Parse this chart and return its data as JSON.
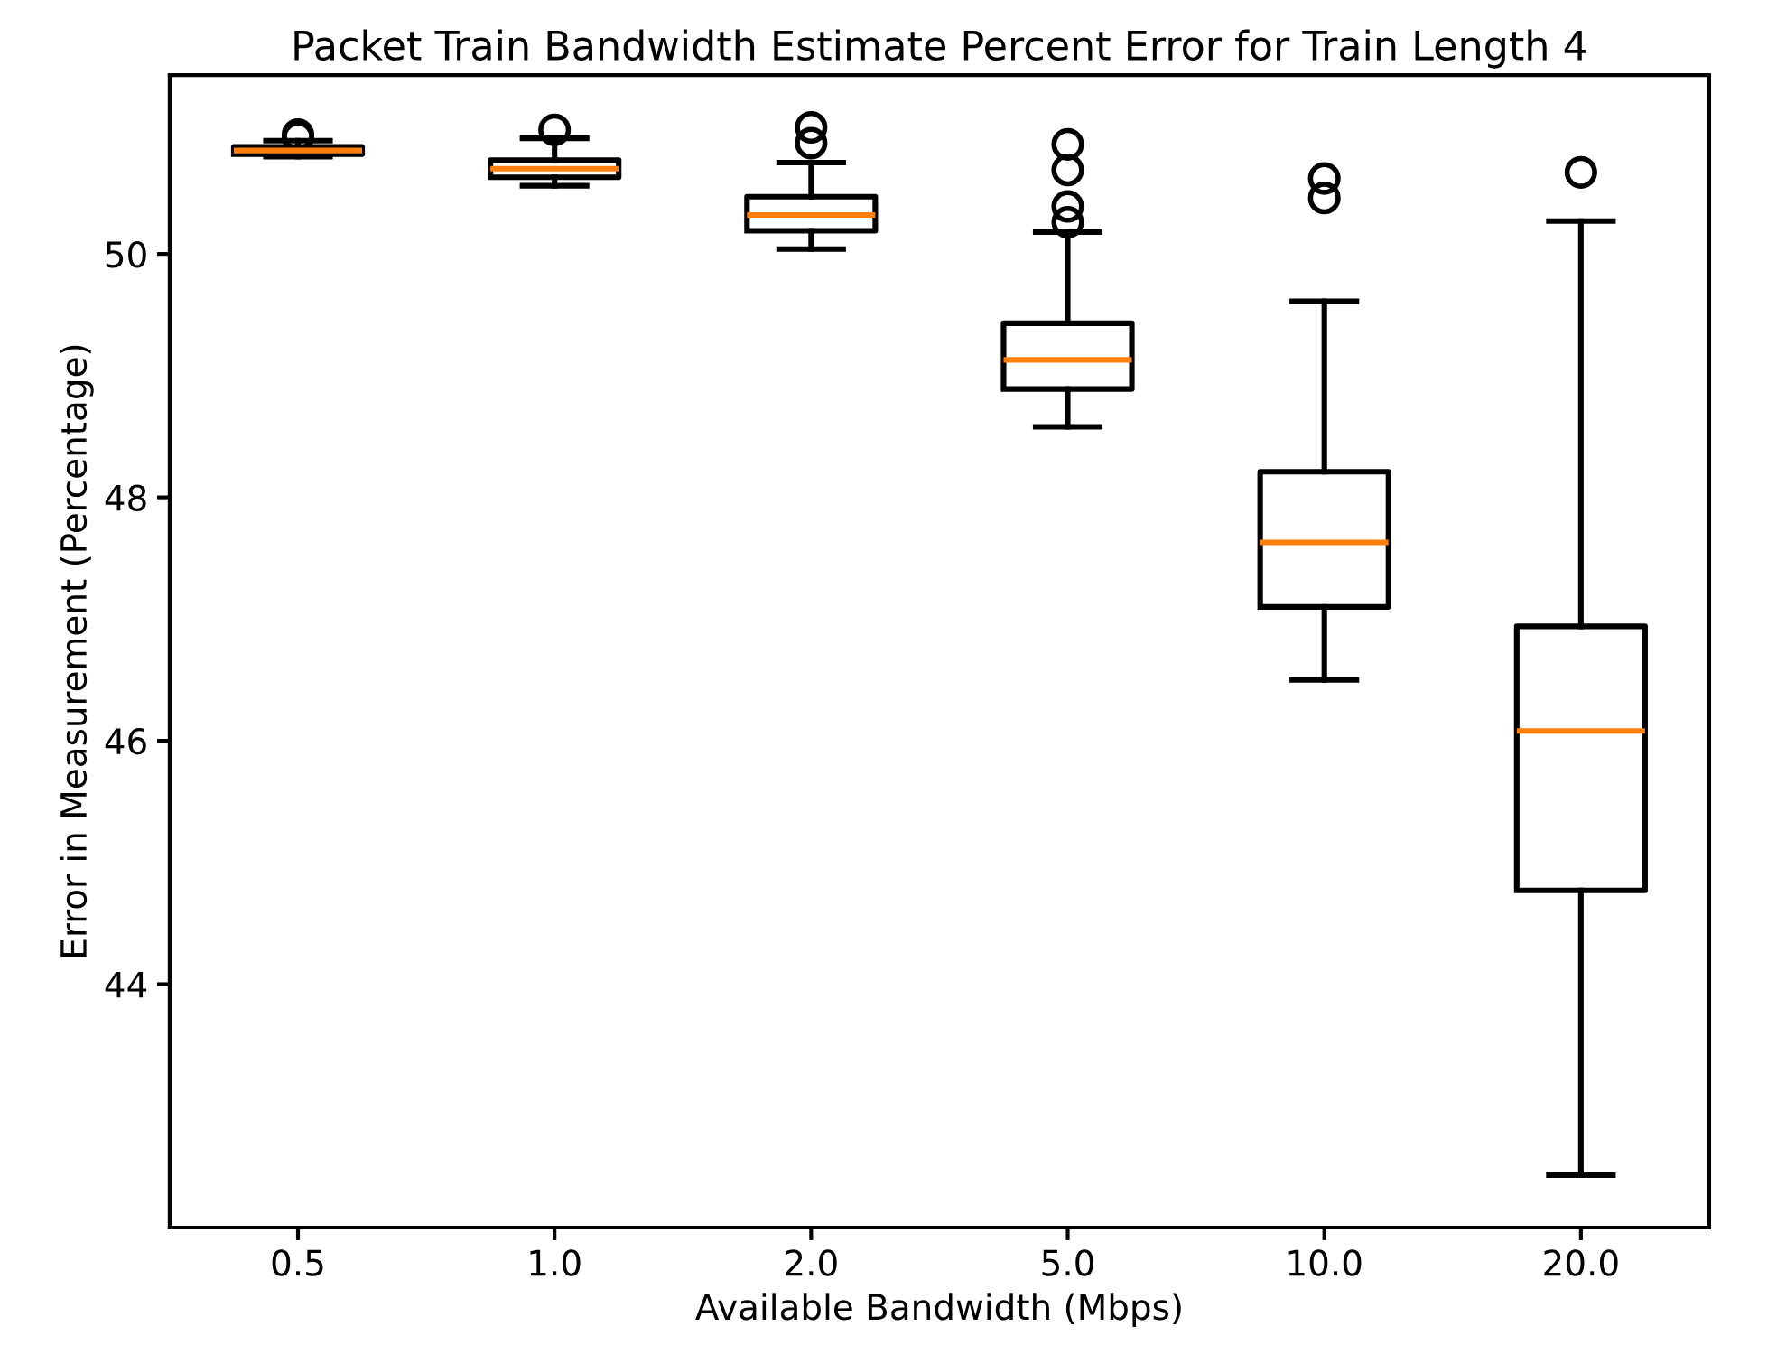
{
  "chart_data": {
    "type": "box",
    "title": "Packet Train Bandwidth Estimate Percent Error for Train Length 4",
    "xlabel": "Available Bandwidth (Mbps)",
    "ylabel": "Error in Measurement (Percentage)",
    "categories": [
      "0.5",
      "1.0",
      "2.0",
      "5.0",
      "10.0",
      "20.0"
    ],
    "boxes": [
      {
        "low": 50.8,
        "q1": 50.82,
        "median": 50.85,
        "q3": 50.88,
        "high": 50.93,
        "outliers": [
          50.96,
          50.98
        ]
      },
      {
        "low": 50.56,
        "q1": 50.63,
        "median": 50.7,
        "q3": 50.77,
        "high": 50.95,
        "outliers": [
          51.02
        ]
      },
      {
        "low": 50.04,
        "q1": 50.19,
        "median": 50.32,
        "q3": 50.47,
        "high": 50.75,
        "outliers": [
          50.91,
          51.04
        ]
      },
      {
        "low": 48.58,
        "q1": 48.89,
        "median": 49.13,
        "q3": 49.43,
        "high": 50.18,
        "outliers": [
          50.26,
          50.39,
          50.69,
          50.9
        ]
      },
      {
        "low": 46.5,
        "q1": 47.1,
        "median": 47.63,
        "q3": 48.21,
        "high": 49.61,
        "outliers": [
          50.46,
          50.62
        ]
      },
      {
        "low": 42.43,
        "q1": 44.77,
        "median": 46.08,
        "q3": 46.94,
        "high": 50.27,
        "outliers": [
          50.67
        ]
      }
    ],
    "ylim": [
      42.0,
      51.47
    ],
    "yticks": [
      44,
      46,
      48,
      50
    ],
    "grid": false
  }
}
